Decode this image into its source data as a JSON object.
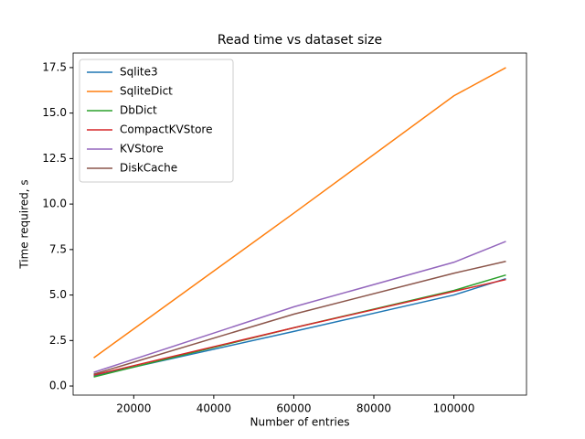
{
  "chart_data": {
    "type": "line",
    "title": "Read time vs dataset size",
    "xlabel": "Number of entries",
    "ylabel": "Time required, s",
    "x": [
      10000,
      60000,
      100000,
      113000
    ],
    "series": [
      {
        "name": "Sqlite3",
        "color": "#1f77b4",
        "values": [
          0.55,
          3.0,
          5.0,
          5.9
        ]
      },
      {
        "name": "SqliteDict",
        "color": "#ff7f0e",
        "values": [
          1.55,
          9.5,
          15.95,
          17.5
        ]
      },
      {
        "name": "DbDict",
        "color": "#2ca02c",
        "values": [
          0.5,
          3.2,
          5.25,
          6.1
        ]
      },
      {
        "name": "CompactKVStore",
        "color": "#d62728",
        "values": [
          0.6,
          3.2,
          5.2,
          5.85
        ]
      },
      {
        "name": "KVStore",
        "color": "#9467bd",
        "values": [
          0.75,
          4.35,
          6.8,
          7.95
        ]
      },
      {
        "name": "DiskCache",
        "color": "#8c564b",
        "values": [
          0.65,
          3.95,
          6.2,
          6.85
        ]
      }
    ],
    "xlim": [
      4850,
      118150
    ],
    "xticks": [
      20000,
      40000,
      60000,
      80000,
      100000
    ],
    "ylim": [
      -0.5,
      18.3
    ],
    "yticks": [
      {
        "value": 0,
        "label": "0.0"
      },
      2.5,
      {
        "value": 5,
        "label": "5.0"
      },
      7.5,
      {
        "value": 10,
        "label": "10.0"
      },
      12.5,
      {
        "value": 15,
        "label": "15.0"
      },
      17.5
    ],
    "legend": "upper left",
    "grid": false
  }
}
